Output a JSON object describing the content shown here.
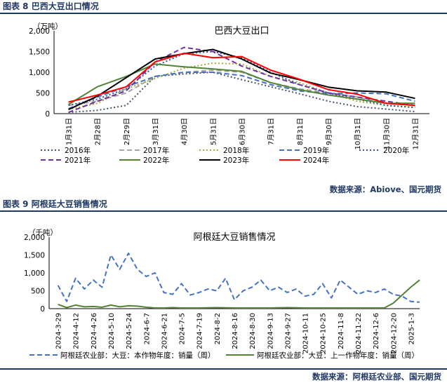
{
  "fig1": {
    "header": "图表 8 巴西大豆出口情况",
    "source": "数据来源：Abiove、国元期货",
    "chart_data": {
      "type": "line",
      "title": "巴西大豆出口",
      "unit": "（万吨）",
      "ylim": [
        0,
        2000
      ],
      "yticks": [
        "0",
        "500",
        "1,000",
        "1,500",
        "2,000"
      ],
      "categories": [
        "1月31日",
        "2月28日",
        "2月29日",
        "3月31日",
        "4月30日",
        "5月31日",
        "6月30日",
        "7月31日",
        "8月31日",
        "9月30日",
        "10月31日",
        "11月30日",
        "12月31日"
      ],
      "legend_position": "bottom",
      "series": [
        {
          "name": "2016年",
          "color": "#44546a",
          "dash": "2,3",
          "width": 2,
          "values": [
            30,
            80,
            200,
            900,
            960,
            1000,
            820,
            650,
            480,
            300,
            170,
            110,
            50
          ]
        },
        {
          "name": "2017年",
          "color": "#a5a5a5",
          "dash": "7,4",
          "width": 2,
          "values": [
            200,
            300,
            500,
            900,
            1000,
            1050,
            1000,
            750,
            600,
            500,
            400,
            250,
            200
          ]
        },
        {
          "name": "2018年",
          "color": "#9fae3c",
          "dash": "2,3",
          "width": 2,
          "values": [
            100,
            250,
            600,
            850,
            1100,
            1220,
            1200,
            900,
            750,
            500,
            300,
            200,
            150
          ]
        },
        {
          "name": "2019年",
          "color": "#4472c4",
          "dash": "7,4",
          "width": 2,
          "values": [
            120,
            400,
            650,
            900,
            1000,
            1000,
            920,
            700,
            550,
            480,
            500,
            480,
            300
          ]
        },
        {
          "name": "2020年",
          "color": "#2e5597",
          "dash": "2,3",
          "width": 2,
          "values": [
            200,
            350,
            600,
            1150,
            1450,
            1500,
            1350,
            1000,
            700,
            500,
            350,
            200,
            150
          ]
        },
        {
          "name": "2021年",
          "color": "#7030a0",
          "dash": "7,4",
          "width": 2,
          "values": [
            30,
            300,
            550,
            1250,
            1600,
            1500,
            1150,
            900,
            700,
            500,
            400,
            300,
            200
          ]
        },
        {
          "name": "2022年",
          "color": "#548235",
          "dash": "",
          "width": 2,
          "values": [
            220,
            650,
            900,
            1200,
            1130,
            1080,
            1020,
            750,
            580,
            450,
            350,
            250,
            250
          ]
        },
        {
          "name": "2023年",
          "color": "#000000",
          "dash": "",
          "width": 2,
          "values": [
            100,
            420,
            870,
            1320,
            1450,
            1550,
            1320,
            980,
            820,
            640,
            550,
            520,
            370
          ]
        },
        {
          "name": "2024年",
          "color": "#ff0000",
          "dash": "",
          "width": 2,
          "values": [
            280,
            450,
            650,
            1250,
            1460,
            1350,
            1380,
            1050,
            830,
            580,
            470,
            250,
            200
          ]
        }
      ]
    }
  },
  "fig2": {
    "header": "图表 9 阿根廷大豆销售情况",
    "source": "数据来源：阿根廷农业部、国元期货",
    "chart_data": {
      "type": "line",
      "title": "阿根廷大豆销售情况",
      "unit": "（千吨）",
      "ylim": [
        0,
        2000
      ],
      "yticks": [
        "0",
        "500",
        "1,000",
        "1,500",
        "2,000"
      ],
      "categories": [
        "2024-3-29",
        "2024-4-12",
        "2024-4-26",
        "2024-5-10",
        "2024-5-24",
        "2024-6-7",
        "2024-6-21",
        "2024-7-5",
        "2024-7-19",
        "2024-8-2",
        "2024-8-16",
        "2024-8-30",
        "2024-9-13",
        "2024-9-27",
        "2024-10-11",
        "2024-10-25",
        "2024-11-8",
        "2024-11-22",
        "2024-12-6",
        "2024-12-20",
        "2025-1-3"
      ],
      "legend_position": "bottom",
      "series": [
        {
          "name": "阿根廷农业部：大豆：本作物年度：销量（周）",
          "color": "#4472c4",
          "dash": "7,4",
          "width": 2,
          "x": [
            0,
            0.5,
            1,
            1.5,
            2,
            2.5,
            3,
            3.5,
            4,
            4.5,
            5,
            5.5,
            6,
            6.5,
            7,
            7.5,
            8,
            8.5,
            9,
            9.5,
            10,
            10.5,
            11,
            11.5,
            12,
            12.5,
            13,
            13.5,
            14,
            14.5,
            15,
            15.5,
            16,
            16.5,
            17,
            17.5,
            18,
            18.5,
            19,
            19.5,
            20,
            20.5
          ],
          "values": [
            650,
            200,
            850,
            550,
            800,
            600,
            1500,
            1100,
            1550,
            1100,
            900,
            1000,
            450,
            400,
            700,
            380,
            450,
            550,
            500,
            850,
            250,
            500,
            600,
            800,
            500,
            600,
            450,
            550,
            350,
            400,
            700,
            300,
            800,
            600,
            400,
            500,
            450,
            550,
            400,
            350,
            200,
            180
          ]
        },
        {
          "name": "阿根廷农业部：大豆：上一作物年度：销量（周）",
          "color": "#548235",
          "dash": "",
          "width": 2,
          "x": [
            0,
            0.5,
            1,
            1.5,
            2,
            2.5,
            3,
            3.5,
            4,
            4.5,
            5,
            5.5,
            6,
            6.5,
            7,
            8,
            9,
            10,
            11,
            12,
            13,
            14,
            15,
            16,
            17,
            18,
            18.5,
            19,
            20,
            20.5
          ],
          "values": [
            120,
            30,
            100,
            50,
            60,
            40,
            100,
            50,
            80,
            70,
            40,
            20,
            20,
            30,
            20,
            20,
            30,
            20,
            20,
            20,
            30,
            20,
            20,
            20,
            20,
            20,
            20,
            150,
            600,
            800
          ]
        }
      ]
    }
  }
}
